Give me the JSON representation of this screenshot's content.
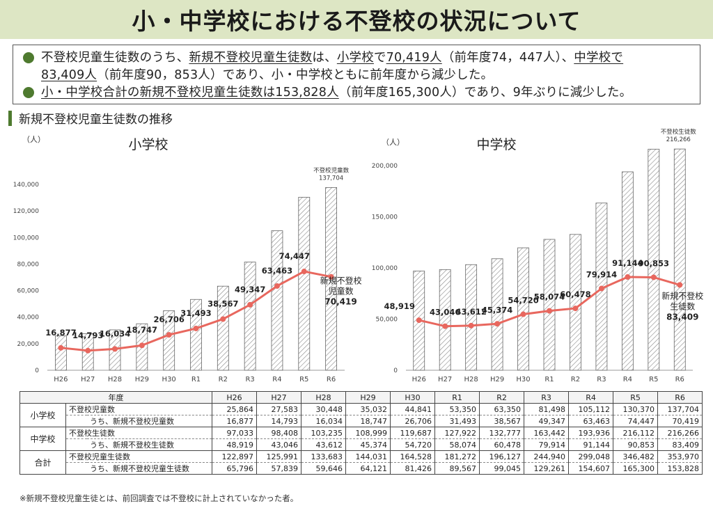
{
  "title": "小・中学校における不登校の状況について",
  "summary": {
    "l1": {
      "a": "不登校児童生徒数のうち、",
      "b": "新規不登校児童生徒数",
      "c": "は、",
      "d": "小学校",
      "e": "で",
      "f": "70,419人",
      "g": "（前年度74，447人）、",
      "h": "中学校で"
    },
    "l2": {
      "a": "83,409人",
      "b": "（前年度90，853人）であり、小・中学校ともに前年度から減少した。"
    },
    "l3": {
      "a": "小・中学校合計の新規不登校児童生徒数は153,828人",
      "b": "（前年度165,300人）であり、9年ぶりに減少した。"
    }
  },
  "section_title": "新規不登校児童生徒数の推移",
  "colors": {
    "line": "#e8675e",
    "bar_stroke": "#666666",
    "accent": "#4e7a2f",
    "title_bg": "#dde6c4"
  },
  "chart_data": [
    {
      "type": "bar",
      "title": "小学校",
      "unit": "（人）",
      "categories": [
        "H26",
        "H27",
        "H28",
        "H29",
        "H30",
        "R1",
        "R2",
        "R3",
        "R4",
        "R5",
        "R6"
      ],
      "ylim": [
        0,
        140000
      ],
      "yticks": [
        "0",
        "20,000",
        "40,000",
        "60,000",
        "80,000",
        "100,000",
        "120,000",
        "140,000"
      ],
      "series": [
        {
          "name": "不登校児童数",
          "kind": "bar",
          "values": [
            25864,
            27583,
            30448,
            35032,
            44841,
            53350,
            63350,
            81498,
            105112,
            130370,
            137704
          ]
        },
        {
          "name": "新規不登校児童数",
          "kind": "line",
          "values": [
            16877,
            14793,
            16034,
            18747,
            26706,
            31493,
            38567,
            49347,
            63463,
            74447,
            70419
          ]
        }
      ],
      "bar_label": "不登校児童数",
      "bar_value_label": "137,704",
      "point_labels": [
        "16,877",
        "14,793",
        "16,034",
        "18,747",
        "26,706",
        "31,493",
        "38,567",
        "49,347",
        "63,463",
        "74,447"
      ],
      "end_label": [
        "新規不登校",
        "児童数",
        "70,419"
      ]
    },
    {
      "type": "bar",
      "title": "中学校",
      "unit": "（人）",
      "categories": [
        "H26",
        "H27",
        "H28",
        "H29",
        "H30",
        "R1",
        "R2",
        "R3",
        "R4",
        "R5",
        "R6"
      ],
      "ylim": [
        0,
        216266
      ],
      "yticks": [
        "0",
        "50,000",
        "100,000",
        "150,000",
        "200,000"
      ],
      "series": [
        {
          "name": "不登校生徒数",
          "kind": "bar",
          "values": [
            97033,
            98408,
            103235,
            108999,
            119687,
            127922,
            132777,
            163442,
            193936,
            216112,
            216266
          ]
        },
        {
          "name": "新規不登校生徒数",
          "kind": "line",
          "values": [
            48919,
            43046,
            43612,
            45374,
            54720,
            58074,
            60478,
            79914,
            91144,
            90853,
            83409
          ]
        }
      ],
      "bar_label": "不登校生徒数",
      "bar_value_label": "216,266",
      "point_labels": [
        "48,919",
        "43,046",
        "43,612",
        "45,374",
        "54,720",
        "58,074",
        "60,478",
        "79,914",
        "91,144",
        "90,853"
      ],
      "end_label": [
        "新規不登校",
        "生徒数",
        "83,409"
      ]
    }
  ],
  "table": {
    "year_header": "年度",
    "years": [
      "H26",
      "H27",
      "H28",
      "H29",
      "H30",
      "R1",
      "R2",
      "R3",
      "R4",
      "R5",
      "R6"
    ],
    "groups": [
      {
        "group": "小学校",
        "rows": [
          {
            "label": "不登校児童数",
            "values": [
              "25,864",
              "27,583",
              "30,448",
              "35,032",
              "44,841",
              "53,350",
              "63,350",
              "81,498",
              "105,112",
              "130,370",
              "137,704"
            ]
          },
          {
            "label": "うち、新規不登校児童数",
            "values": [
              "16,877",
              "14,793",
              "16,034",
              "18,747",
              "26,706",
              "31,493",
              "38,567",
              "49,347",
              "63,463",
              "74,447",
              "70,419"
            ]
          }
        ]
      },
      {
        "group": "中学校",
        "rows": [
          {
            "label": "不登校生徒数",
            "values": [
              "97,033",
              "98,408",
              "103,235",
              "108,999",
              "119,687",
              "127,922",
              "132,777",
              "163,442",
              "193,936",
              "216,112",
              "216,266"
            ]
          },
          {
            "label": "うち、新規不登校生徒数",
            "values": [
              "48,919",
              "43,046",
              "43,612",
              "45,374",
              "54,720",
              "58,074",
              "60,478",
              "79,914",
              "91,144",
              "90,853",
              "83,409"
            ]
          }
        ]
      },
      {
        "group": "合計",
        "rows": [
          {
            "label": "不登校児童生徒数",
            "values": [
              "122,897",
              "125,991",
              "133,683",
              "144,031",
              "164,528",
              "181,272",
              "196,127",
              "244,940",
              "299,048",
              "346,482",
              "353,970"
            ]
          },
          {
            "label": "うち、新規不登校児童生徒数",
            "values": [
              "65,796",
              "57,839",
              "59,646",
              "64,121",
              "81,426",
              "89,567",
              "99,045",
              "129,261",
              "154,607",
              "165,300",
              "153,828"
            ]
          }
        ]
      }
    ]
  },
  "footnote": "※新規不登校児童生徒とは、前回調査では不登校に計上されていなかった者。"
}
